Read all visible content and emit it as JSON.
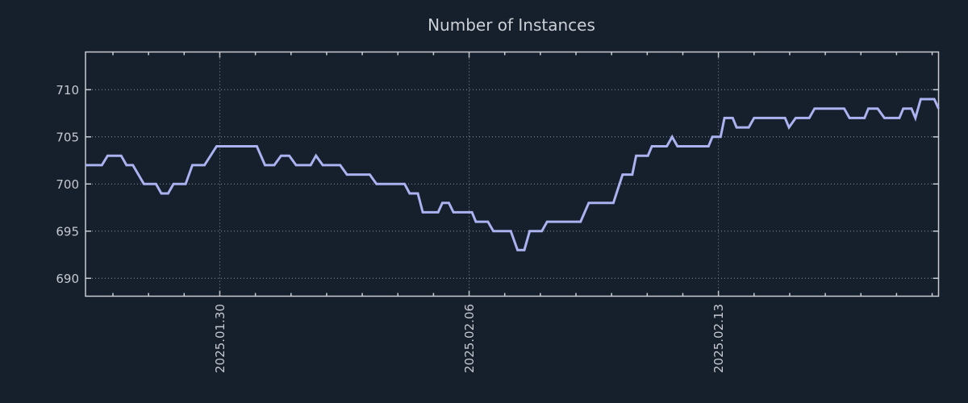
{
  "figure": {
    "background_color": "#161f2c",
    "line_color": "#aab2f0",
    "grid_color": "#8d93a0",
    "axis_color": "#c9ccd2",
    "text_color": "#c6c9d0"
  },
  "chart_data": {
    "type": "line",
    "title": "Number of Instances",
    "xlabel": "",
    "ylabel": "",
    "legend_position": "none",
    "grid": true,
    "x_unit": "days relative to 2025.01.30",
    "x_range": [
      -3.77,
      20.18
    ],
    "y_range": [
      688.1,
      714.0
    ],
    "y_ticks": [
      690,
      695,
      700,
      705,
      710
    ],
    "x_major_ticks": [
      {
        "day": 0,
        "label": "2025.01.30"
      },
      {
        "day": 7,
        "label": "2025.02.06"
      },
      {
        "day": 14,
        "label": "2025.02.13"
      }
    ],
    "x_minor_tick_step_days": 1,
    "series": [
      {
        "name": "instances",
        "color": "#aab2f0",
        "points": [
          [
            -3.77,
            702
          ],
          [
            -3.31,
            702
          ],
          [
            -3.15,
            703
          ],
          [
            -2.77,
            703
          ],
          [
            -2.62,
            702
          ],
          [
            -2.44,
            702
          ],
          [
            -2.13,
            700
          ],
          [
            -1.79,
            700
          ],
          [
            -1.64,
            699
          ],
          [
            -1.45,
            699
          ],
          [
            -1.3,
            700
          ],
          [
            -0.96,
            700
          ],
          [
            -0.77,
            702
          ],
          [
            -0.43,
            702
          ],
          [
            -0.09,
            704
          ],
          [
            1.04,
            704
          ],
          [
            1.27,
            702
          ],
          [
            1.53,
            702
          ],
          [
            1.72,
            703
          ],
          [
            1.95,
            703
          ],
          [
            2.14,
            702
          ],
          [
            2.55,
            702
          ],
          [
            2.7,
            703
          ],
          [
            2.89,
            702
          ],
          [
            3.38,
            702
          ],
          [
            3.57,
            701
          ],
          [
            4.21,
            701
          ],
          [
            4.4,
            700
          ],
          [
            5.19,
            700
          ],
          [
            5.33,
            699
          ],
          [
            5.56,
            699
          ],
          [
            5.7,
            697
          ],
          [
            6.13,
            697
          ],
          [
            6.25,
            698
          ],
          [
            6.43,
            698
          ],
          [
            6.56,
            697
          ],
          [
            7.08,
            697
          ],
          [
            7.19,
            696
          ],
          [
            7.53,
            696
          ],
          [
            7.68,
            695
          ],
          [
            8.17,
            695
          ],
          [
            8.36,
            693
          ],
          [
            8.55,
            693
          ],
          [
            8.7,
            695
          ],
          [
            9.04,
            695
          ],
          [
            9.19,
            696
          ],
          [
            10.13,
            696
          ],
          [
            10.36,
            698
          ],
          [
            11.05,
            698
          ],
          [
            11.31,
            701
          ],
          [
            11.58,
            701
          ],
          [
            11.69,
            703
          ],
          [
            12.02,
            703
          ],
          [
            12.13,
            704
          ],
          [
            12.55,
            704
          ],
          [
            12.7,
            705
          ],
          [
            12.85,
            704
          ],
          [
            13.72,
            704
          ],
          [
            13.83,
            705
          ],
          [
            14.06,
            705
          ],
          [
            14.17,
            707
          ],
          [
            14.4,
            707
          ],
          [
            14.51,
            706
          ],
          [
            14.85,
            706
          ],
          [
            15.0,
            707
          ],
          [
            15.87,
            707
          ],
          [
            15.98,
            706
          ],
          [
            16.17,
            707
          ],
          [
            16.55,
            707
          ],
          [
            16.7,
            708
          ],
          [
            17.53,
            708
          ],
          [
            17.68,
            707
          ],
          [
            18.1,
            707
          ],
          [
            18.21,
            708
          ],
          [
            18.47,
            708
          ],
          [
            18.66,
            707
          ],
          [
            19.08,
            707
          ],
          [
            19.19,
            708
          ],
          [
            19.42,
            708
          ],
          [
            19.53,
            707
          ],
          [
            19.68,
            709
          ],
          [
            20.06,
            709
          ],
          [
            20.18,
            708
          ]
        ]
      }
    ]
  }
}
